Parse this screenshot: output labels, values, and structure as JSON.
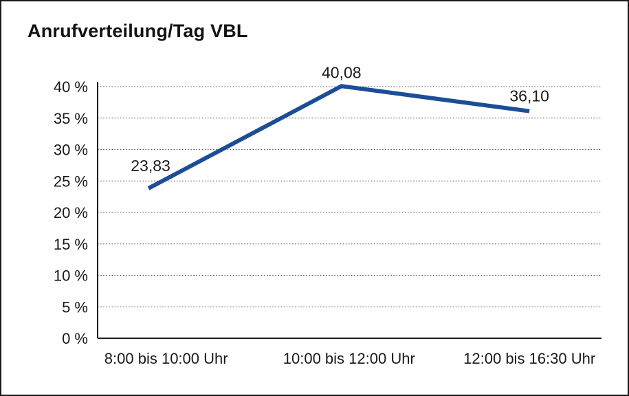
{
  "frame": {
    "background": "#ffffff",
    "border_color": "#1a1a1a"
  },
  "chart_data": {
    "type": "line",
    "title": "Anrufverteilung/Tag VBL",
    "categories": [
      "8:00 bis 10:00 Uhr",
      "10:00 bis 12:00 Uhr",
      "12:00 bis 16:30 Uhr"
    ],
    "series": [
      {
        "values": [
          23.83,
          40.08,
          36.1
        ],
        "point_labels": [
          "23,83",
          "40,08",
          "36,10"
        ],
        "color": "#1b4e96"
      }
    ],
    "xlabel": "",
    "ylabel": "",
    "ylim": [
      0,
      40
    ],
    "yticks": [
      {
        "value": 0,
        "label": "0 %"
      },
      {
        "value": 5,
        "label": "5 %"
      },
      {
        "value": 10,
        "label": "10 %"
      },
      {
        "value": 15,
        "label": "15 %"
      },
      {
        "value": 20,
        "label": "20 %"
      },
      {
        "value": 25,
        "label": "25 %"
      },
      {
        "value": 30,
        "label": "30 %"
      },
      {
        "value": 35,
        "label": "35 %"
      },
      {
        "value": 40,
        "label": "40 %"
      }
    ],
    "grid": "horizontal-dotted",
    "legend": "none",
    "markers": "none"
  }
}
